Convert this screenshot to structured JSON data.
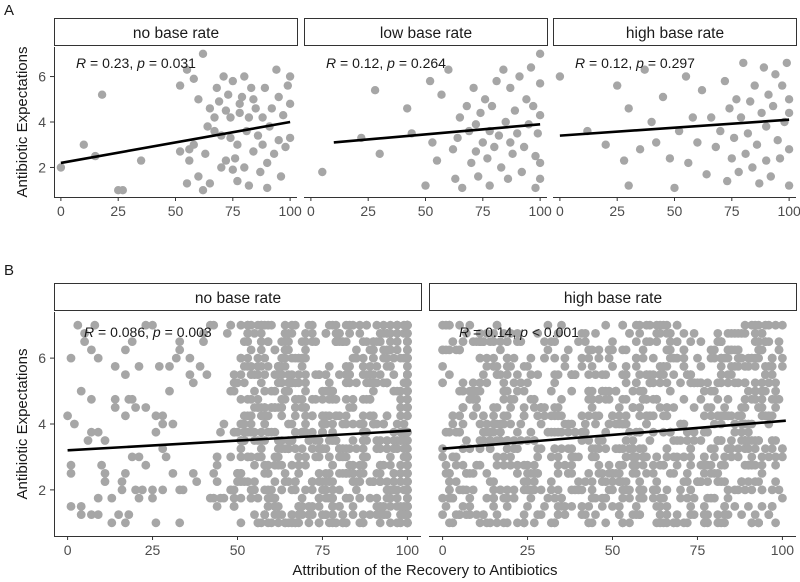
{
  "colors": {
    "point": "#a6a6a6",
    "line": "#000000",
    "strip_border": "#333333"
  },
  "chart_data": [
    {
      "panel_tag": "A",
      "type": "scatter",
      "ylabel": "Antibiotic Expectations",
      "xticks": [
        0,
        25,
        50,
        75,
        100
      ],
      "yticks": [
        2,
        4,
        6
      ],
      "xlim": [
        -3,
        103
      ],
      "ylim": [
        0.7,
        7.3
      ],
      "facets": [
        {
          "label": "no base rate",
          "stat": {
            "r_label": "R",
            "r_value": "0.23",
            "p_label": "p",
            "p_op": "=",
            "p_value": "0.031"
          },
          "fit": {
            "x1": 0,
            "y1": 2.2,
            "x2": 100,
            "y2": 4.0
          },
          "points": [
            [
              0,
              2
            ],
            [
              10,
              3
            ],
            [
              15,
              2.5
            ],
            [
              18,
              5.2
            ],
            [
              25,
              1
            ],
            [
              27,
              1
            ],
            [
              35,
              2.3
            ],
            [
              52,
              2.7
            ],
            [
              52,
              5.6
            ],
            [
              55,
              1.3
            ],
            [
              55,
              6.3
            ],
            [
              56,
              2.3
            ],
            [
              56,
              2.8
            ],
            [
              58,
              3
            ],
            [
              58,
              5.9
            ],
            [
              60,
              1.6
            ],
            [
              60,
              5
            ],
            [
              62,
              1
            ],
            [
              62,
              7
            ],
            [
              63,
              2.6
            ],
            [
              64,
              3.8
            ],
            [
              65,
              4.6
            ],
            [
              65,
              1.3
            ],
            [
              67,
              3.6
            ],
            [
              67,
              4.2
            ],
            [
              68,
              5.5
            ],
            [
              69,
              4.9
            ],
            [
              70,
              3.4
            ],
            [
              70,
              2
            ],
            [
              71,
              6
            ],
            [
              72,
              4.5
            ],
            [
              72,
              2.3
            ],
            [
              73,
              5.2
            ],
            [
              74,
              3.3
            ],
            [
              74,
              4.2
            ],
            [
              75,
              1.9
            ],
            [
              75,
              5.8
            ],
            [
              76,
              2.4
            ],
            [
              77,
              3
            ],
            [
              77,
              1.4
            ],
            [
              78,
              4.8
            ],
            [
              78,
              4.4
            ],
            [
              79,
              5.1
            ],
            [
              80,
              6
            ],
            [
              80,
              2
            ],
            [
              81,
              3.6
            ],
            [
              82,
              4.2
            ],
            [
              82,
              1.2
            ],
            [
              83,
              5.5
            ],
            [
              84,
              2.7
            ],
            [
              84,
              5
            ],
            [
              85,
              4.6
            ],
            [
              86,
              3.4
            ],
            [
              87,
              1.8
            ],
            [
              88,
              3
            ],
            [
              88,
              4.2
            ],
            [
              89,
              5.5
            ],
            [
              90,
              2.2
            ],
            [
              90,
              1.1
            ],
            [
              91,
              3.8
            ],
            [
              92,
              4.6
            ],
            [
              93,
              2.6
            ],
            [
              94,
              6.3
            ],
            [
              95,
              3.2
            ],
            [
              95,
              5.1
            ],
            [
              96,
              1.6
            ],
            [
              97,
              4.3
            ],
            [
              98,
              2.9
            ],
            [
              99,
              5.6
            ],
            [
              100,
              4.8
            ],
            [
              100,
              3.3
            ],
            [
              100,
              6
            ]
          ]
        },
        {
          "label": "low base rate",
          "stat": {
            "r_label": "R",
            "r_value": "0.12",
            "p_label": "p",
            "p_op": "=",
            "p_value": "0.264"
          },
          "fit": {
            "x1": 10,
            "y1": 3.1,
            "x2": 100,
            "y2": 3.9
          },
          "points": [
            [
              5,
              1.8
            ],
            [
              22,
              3.3
            ],
            [
              28,
              5.4
            ],
            [
              30,
              2.6
            ],
            [
              42,
              4.6
            ],
            [
              44,
              3.5
            ],
            [
              50,
              1.2
            ],
            [
              52,
              5.8
            ],
            [
              53,
              3.1
            ],
            [
              55,
              2.3
            ],
            [
              57,
              5.2
            ],
            [
              60,
              6.3
            ],
            [
              62,
              2.8
            ],
            [
              63,
              1.5
            ],
            [
              64,
              3.3
            ],
            [
              65,
              4.2
            ],
            [
              66,
              1.1
            ],
            [
              68,
              4.7
            ],
            [
              69,
              3.6
            ],
            [
              70,
              2.2
            ],
            [
              71,
              5.5
            ],
            [
              72,
              3.9
            ],
            [
              72,
              2.7
            ],
            [
              73,
              1.6
            ],
            [
              74,
              4.4
            ],
            [
              75,
              3.1
            ],
            [
              76,
              5
            ],
            [
              77,
              2.4
            ],
            [
              78,
              3.6
            ],
            [
              78,
              1.2
            ],
            [
              79,
              4.7
            ],
            [
              80,
              2.9
            ],
            [
              81,
              5.8
            ],
            [
              82,
              3.4
            ],
            [
              83,
              2
            ],
            [
              84,
              6.3
            ],
            [
              85,
              4
            ],
            [
              86,
              1.5
            ],
            [
              87,
              3.1
            ],
            [
              87,
              5.5
            ],
            [
              88,
              2.6
            ],
            [
              89,
              4.5
            ],
            [
              90,
              3.5
            ],
            [
              91,
              6
            ],
            [
              92,
              1.8
            ],
            [
              93,
              2.9
            ],
            [
              94,
              5
            ],
            [
              95,
              3.9
            ],
            [
              96,
              6.4
            ],
            [
              97,
              4.7
            ],
            [
              98,
              2.5
            ],
            [
              98,
              1.1
            ],
            [
              99,
              3.5
            ],
            [
              100,
              5.7
            ],
            [
              100,
              7
            ],
            [
              100,
              2.2
            ],
            [
              100,
              1.5
            ],
            [
              100,
              4.3
            ]
          ]
        },
        {
          "label": "high base rate",
          "stat": {
            "r_label": "R",
            "r_value": "0.12",
            "p_label": "p",
            "p_op": "=",
            "p_value": "0.297"
          },
          "fit": {
            "x1": 0,
            "y1": 3.4,
            "x2": 100,
            "y2": 4.1
          },
          "points": [
            [
              0,
              6
            ],
            [
              12,
              3.6
            ],
            [
              20,
              3
            ],
            [
              25,
              5.6
            ],
            [
              28,
              2.3
            ],
            [
              30,
              1.2
            ],
            [
              30,
              4.6
            ],
            [
              35,
              2.8
            ],
            [
              37,
              6.3
            ],
            [
              40,
              4
            ],
            [
              42,
              3.1
            ],
            [
              45,
              5.1
            ],
            [
              48,
              2.4
            ],
            [
              50,
              1.1
            ],
            [
              52,
              3.6
            ],
            [
              55,
              6
            ],
            [
              56,
              2.2
            ],
            [
              58,
              4.2
            ],
            [
              60,
              3.1
            ],
            [
              62,
              5.4
            ],
            [
              64,
              1.7
            ],
            [
              66,
              4.2
            ],
            [
              68,
              2.9
            ],
            [
              70,
              3.6
            ],
            [
              72,
              5.8
            ],
            [
              73,
              1.4
            ],
            [
              74,
              4.6
            ],
            [
              75,
              2.4
            ],
            [
              76,
              3.3
            ],
            [
              77,
              5
            ],
            [
              78,
              1.8
            ],
            [
              79,
              4.2
            ],
            [
              80,
              6.6
            ],
            [
              81,
              2.6
            ],
            [
              82,
              3.5
            ],
            [
              83,
              4.9
            ],
            [
              84,
              2
            ],
            [
              85,
              5.6
            ],
            [
              86,
              3
            ],
            [
              87,
              1.3
            ],
            [
              88,
              4.4
            ],
            [
              89,
              6.4
            ],
            [
              90,
              2.3
            ],
            [
              90,
              3.8
            ],
            [
              91,
              5.2
            ],
            [
              92,
              1.6
            ],
            [
              93,
              4.7
            ],
            [
              94,
              6.1
            ],
            [
              95,
              3.2
            ],
            [
              96,
              2.4
            ],
            [
              97,
              5.6
            ],
            [
              98,
              4
            ],
            [
              99,
              6.6
            ],
            [
              100,
              2.8
            ],
            [
              100,
              5
            ],
            [
              100,
              1.2
            ],
            [
              100,
              4.4
            ]
          ]
        }
      ]
    },
    {
      "panel_tag": "B",
      "type": "scatter",
      "ylabel": "Antibiotic Expectations",
      "xlabel": "Attribution of the Recovery to Antibiotics",
      "xticks": [
        0,
        25,
        50,
        75,
        100
      ],
      "yticks": [
        2,
        4,
        6
      ],
      "xlim": [
        -4,
        104
      ],
      "ylim": [
        0.6,
        7.4
      ],
      "facets": [
        {
          "label": "no base rate",
          "stat": {
            "r_label": "R",
            "r_value": "0.086",
            "p_label": "p",
            "p_op": "=",
            "p_value": "0.003"
          },
          "fit": {
            "x1": 0,
            "y1": 3.2,
            "x2": 101,
            "y2": 3.8
          },
          "n_points": 900
        },
        {
          "label": "high base rate",
          "stat": {
            "r_label": "R",
            "r_value": "0.14",
            "p_label": "p",
            "p_op": "<",
            "p_value": "0.001"
          },
          "fit": {
            "x1": 0,
            "y1": 3.25,
            "x2": 101,
            "y2": 4.1
          },
          "n_points": 1000
        }
      ]
    }
  ]
}
